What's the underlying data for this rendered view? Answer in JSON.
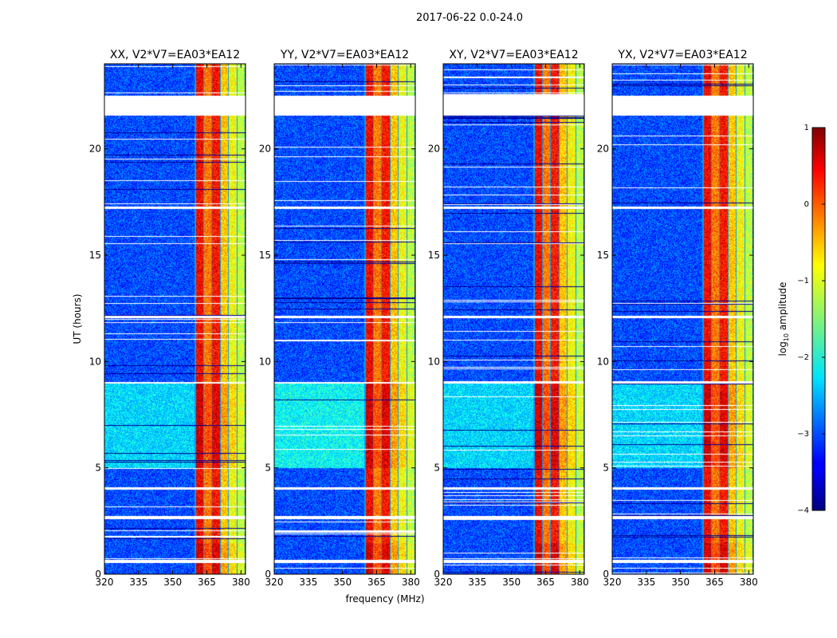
{
  "figure": {
    "suptitle": "2017-06-22 0.0-24.0"
  },
  "chart_data": {
    "type": "heatmap",
    "xlabel": "frequency (MHz)",
    "ylabel": "UT (hours)",
    "xlim": [
      320,
      382
    ],
    "ylim": [
      0,
      24
    ],
    "xticks": [
      320,
      335,
      350,
      365,
      380
    ],
    "yticks": [
      0,
      5,
      10,
      15,
      20
    ],
    "panels": [
      {
        "title": "XX, V2*V7=EA03*EA12"
      },
      {
        "title": "YY, V2*V7=EA03*EA12"
      },
      {
        "title": "XY, V2*V7=EA03*EA12"
      },
      {
        "title": "YX, V2*V7=EA03*EA12"
      }
    ],
    "colorbar": {
      "label": "log",
      "label_sub": "10",
      "label_rest": " amplitude",
      "range": [
        -4,
        1
      ],
      "ticks": [
        1,
        0,
        -1,
        -2,
        -3,
        -4
      ],
      "tick_labels": [
        "1",
        "0",
        "−1",
        "−2",
        "−3",
        "−4"
      ],
      "colormap": "jet"
    },
    "rfi_band_mhz": [
      359.5,
      381.5
    ],
    "flagged_time_ranges_hours": [
      [
        21.6,
        22.5
      ],
      [
        2.6,
        2.75
      ],
      [
        0.55,
        0.7
      ],
      [
        12.05,
        12.15
      ],
      [
        9.0,
        9.05
      ],
      [
        17.2,
        17.3
      ],
      [
        4.0,
        4.1
      ]
    ]
  }
}
